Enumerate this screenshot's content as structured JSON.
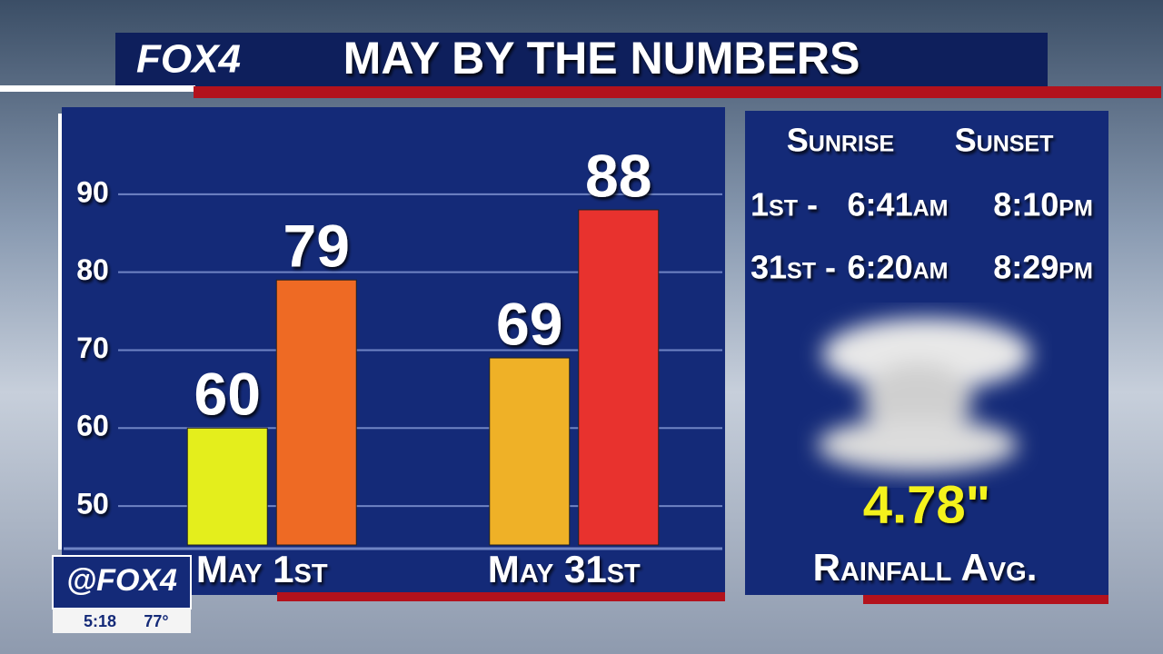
{
  "header": {
    "logo": "FOX4",
    "title": "MAY BY THE NUMBERS"
  },
  "chart_data": {
    "type": "bar",
    "categories": [
      "May 1st",
      "May 31st"
    ],
    "series": [
      {
        "colors": [
          "#e4ee1c",
          "#efb127"
        ],
        "values": [
          60,
          69
        ]
      },
      {
        "colors": [
          "#ee6a24",
          "#e8322e"
        ],
        "values": [
          79,
          88
        ]
      }
    ],
    "ylim": [
      45,
      100
    ],
    "yticks": [
      50,
      60,
      70,
      80,
      90
    ],
    "grid": true
  },
  "sun_table": {
    "headers": [
      "Sunrise",
      "Sunset"
    ],
    "rows": [
      [
        "1st -",
        "6:41am",
        "8:10pm"
      ],
      [
        "31st -",
        "6:20am",
        "8:29pm"
      ]
    ]
  },
  "rainfall": {
    "value": "4.78\"",
    "label": "Rainfall Avg."
  },
  "bug": {
    "handle": "@FOX4",
    "time": "5:18",
    "temp": "77°"
  }
}
